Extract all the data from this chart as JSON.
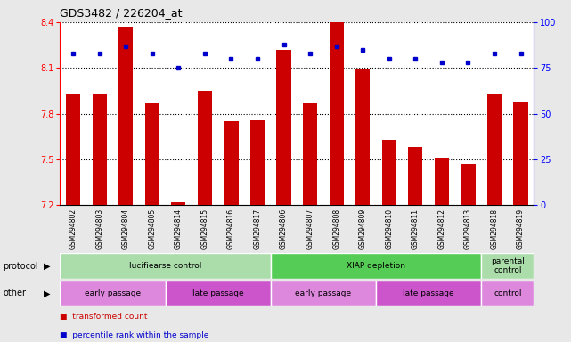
{
  "title": "GDS3482 / 226204_at",
  "samples": [
    "GSM294802",
    "GSM294803",
    "GSM294804",
    "GSM294805",
    "GSM294814",
    "GSM294815",
    "GSM294816",
    "GSM294817",
    "GSM294806",
    "GSM294807",
    "GSM294808",
    "GSM294809",
    "GSM294810",
    "GSM294811",
    "GSM294812",
    "GSM294813",
    "GSM294818",
    "GSM294819"
  ],
  "bar_values": [
    7.93,
    7.93,
    8.37,
    7.87,
    7.22,
    7.95,
    7.75,
    7.76,
    8.22,
    7.87,
    8.4,
    8.09,
    7.63,
    7.58,
    7.51,
    7.47,
    7.93,
    7.88
  ],
  "dot_values": [
    83,
    83,
    87,
    83,
    75,
    83,
    80,
    80,
    88,
    83,
    87,
    85,
    80,
    80,
    78,
    78,
    83,
    83
  ],
  "ylim_left": [
    7.2,
    8.4
  ],
  "ylim_right": [
    0,
    100
  ],
  "yticks_left": [
    7.2,
    7.5,
    7.8,
    8.1,
    8.4
  ],
  "yticks_right": [
    0,
    25,
    50,
    75,
    100
  ],
  "bar_color": "#cc0000",
  "dot_color": "#0000cc",
  "background_color": "#e8e8e8",
  "plot_bg": "#ffffff",
  "protocol_groups": [
    {
      "label": "lucifiearse control",
      "start": 0,
      "end": 8,
      "color": "#aaddaa"
    },
    {
      "label": "XIAP depletion",
      "start": 8,
      "end": 16,
      "color": "#55cc55"
    },
    {
      "label": "parental\ncontrol",
      "start": 16,
      "end": 18,
      "color": "#aaddaa"
    }
  ],
  "other_groups": [
    {
      "label": "early passage",
      "start": 0,
      "end": 4,
      "color": "#dd88dd"
    },
    {
      "label": "late passage",
      "start": 4,
      "end": 8,
      "color": "#cc55cc"
    },
    {
      "label": "early passage",
      "start": 8,
      "end": 12,
      "color": "#dd88dd"
    },
    {
      "label": "late passage",
      "start": 12,
      "end": 16,
      "color": "#cc55cc"
    },
    {
      "label": "control",
      "start": 16,
      "end": 18,
      "color": "#dd88dd"
    }
  ],
  "legend_items": [
    {
      "label": "transformed count",
      "color": "#cc0000"
    },
    {
      "label": "percentile rank within the sample",
      "color": "#0000cc"
    }
  ]
}
